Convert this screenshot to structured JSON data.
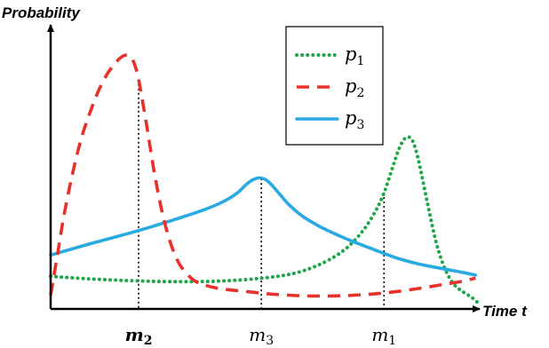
{
  "chart_data": {
    "type": "line",
    "xlabel": "Time t",
    "ylabel": "Probability",
    "xlim": [
      0,
      100
    ],
    "ylim": [
      0,
      100
    ],
    "grid": false,
    "legend_position": "top-right",
    "marker_ticks": [
      {
        "symbol": "m",
        "sub": "2",
        "bold": true,
        "x": 20.3
      },
      {
        "symbol": "m",
        "sub": "3",
        "bold": false,
        "x": 48.6
      },
      {
        "symbol": "m",
        "sub": "1",
        "bold": false,
        "x": 76.9
      }
    ],
    "series": [
      {
        "name": "p1",
        "symbol": "p",
        "sub": "1",
        "color": "#20a64a",
        "dash": "dotted",
        "x": [
          0,
          10,
          20,
          30,
          40,
          50,
          57,
          63,
          68,
          72,
          75,
          77,
          79,
          80.5,
          82,
          83.5,
          85,
          87,
          89,
          91,
          93,
          95,
          97,
          98.5
        ],
        "y": [
          11.9,
          10.8,
          10.1,
          9.8,
          10.1,
          11.4,
          13.5,
          17.4,
          22.8,
          30.0,
          38.1,
          45.6,
          55.9,
          63.2,
          67.2,
          65.8,
          57.0,
          40.4,
          25.0,
          14.7,
          8.8,
          5.9,
          3.7,
          1.5
        ]
      },
      {
        "name": "p2",
        "symbol": "p",
        "sub": "2",
        "color": "#e8312a",
        "dash": "dashed",
        "x": [
          0,
          1.5,
          3,
          5,
          7,
          9,
          11,
          13,
          15,
          16.5,
          17.5,
          18.3,
          19.2,
          20.3,
          22,
          24,
          26,
          28,
          30,
          33,
          36,
          40,
          45,
          50,
          55,
          60,
          65,
          70,
          75,
          80,
          85,
          90,
          95,
          98
        ],
        "y": [
          4.4,
          19.7,
          35.4,
          52.4,
          66.4,
          76.7,
          85.6,
          92.3,
          97.0,
          99.4,
          100.0,
          99.4,
          97.0,
          90.2,
          73.5,
          52.4,
          35.4,
          23.5,
          16.0,
          10.4,
          8.2,
          6.8,
          5.9,
          5.0,
          4.4,
          4.1,
          4.1,
          4.4,
          5.0,
          5.9,
          7.1,
          8.5,
          10.0,
          11.2
        ]
      },
      {
        "name": "p3",
        "symbol": "p",
        "sub": "3",
        "color": "#2aaae2",
        "dash": "solid",
        "x": [
          0,
          10,
          20,
          30,
          36,
          40,
          43,
          45,
          46.5,
          48,
          49.5,
          51,
          53,
          55,
          58,
          62,
          66,
          70,
          75,
          80,
          85,
          90,
          95,
          98
        ],
        "y": [
          20.4,
          25.3,
          30.0,
          35.3,
          38.8,
          41.8,
          45.0,
          48.3,
          50.2,
          51.1,
          50.5,
          48.3,
          44.3,
          40.4,
          36.0,
          31.8,
          28.5,
          25.6,
          22.3,
          19.1,
          16.8,
          15.1,
          13.5,
          12.4
        ]
      }
    ]
  }
}
